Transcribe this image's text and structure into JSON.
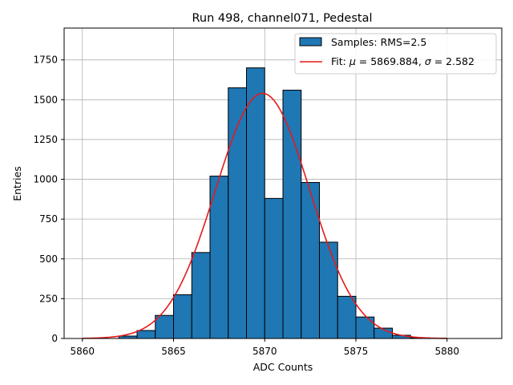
{
  "chart_data": {
    "type": "bar",
    "title": "Run 498, channel071, Pedestal",
    "xlabel": "ADC Counts",
    "ylabel": "Entries",
    "xlim": [
      5859,
      5883
    ],
    "ylim": [
      0,
      1950
    ],
    "xticks": [
      5860,
      5865,
      5870,
      5875,
      5880
    ],
    "yticks": [
      0,
      250,
      500,
      750,
      1000,
      1250,
      1500,
      1750
    ],
    "grid": true,
    "legend_position": "top-right",
    "histogram": {
      "name": "Samples: RMS=2.5",
      "color": "#1f77b4",
      "bin_width": 1,
      "bin_edges_start": [
        5862,
        5863,
        5864,
        5865,
        5866,
        5867,
        5868,
        5869,
        5870,
        5871,
        5872,
        5873,
        5874,
        5875,
        5876,
        5877,
        5878
      ],
      "counts": [
        15,
        50,
        145,
        275,
        540,
        1020,
        1575,
        1700,
        880,
        1560,
        980,
        605,
        265,
        135,
        65,
        20,
        5
      ]
    },
    "fit": {
      "name": "Fit: μ = 5869.884, σ = 2.582",
      "name_parts": {
        "label": "Fit: ",
        "mu_symbol": "μ",
        "mu_text": " = 5869.884, ",
        "sigma_symbol": "σ",
        "sigma_text": " = 2.582"
      },
      "color": "#e41a1c",
      "mu": 5869.884,
      "sigma": 2.582,
      "amplitude": 1540,
      "x_range": [
        5860,
        5880
      ]
    }
  }
}
